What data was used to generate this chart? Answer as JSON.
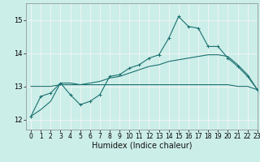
{
  "title": "",
  "xlabel": "Humidex (Indice chaleur)",
  "xlim": [
    -0.5,
    23
  ],
  "ylim": [
    11.7,
    15.5
  ],
  "xticks": [
    0,
    1,
    2,
    3,
    4,
    5,
    6,
    7,
    8,
    9,
    10,
    11,
    12,
    13,
    14,
    15,
    16,
    17,
    18,
    19,
    20,
    21,
    22,
    23
  ],
  "yticks": [
    12,
    13,
    14,
    15
  ],
  "background_color": "#cceee8",
  "grid_color": "#f5f5f5",
  "line_color": "#1a7070",
  "line1_y": [
    12.1,
    12.7,
    12.8,
    13.1,
    12.75,
    12.45,
    12.55,
    12.75,
    13.3,
    13.35,
    13.55,
    13.65,
    13.85,
    13.95,
    14.45,
    15.1,
    14.8,
    14.75,
    14.2,
    14.2,
    13.85,
    13.6,
    13.3,
    12.9
  ],
  "line2_y": [
    13.0,
    13.0,
    13.0,
    13.05,
    13.05,
    13.05,
    13.05,
    13.05,
    13.05,
    13.05,
    13.05,
    13.05,
    13.05,
    13.05,
    13.05,
    13.05,
    13.05,
    13.05,
    13.05,
    13.05,
    13.05,
    13.0,
    13.0,
    12.9
  ],
  "line3_y": [
    12.1,
    12.3,
    12.55,
    13.1,
    13.1,
    13.05,
    13.1,
    13.15,
    13.25,
    13.3,
    13.4,
    13.5,
    13.6,
    13.65,
    13.75,
    13.8,
    13.85,
    13.9,
    13.95,
    13.95,
    13.9,
    13.65,
    13.35,
    12.9
  ]
}
